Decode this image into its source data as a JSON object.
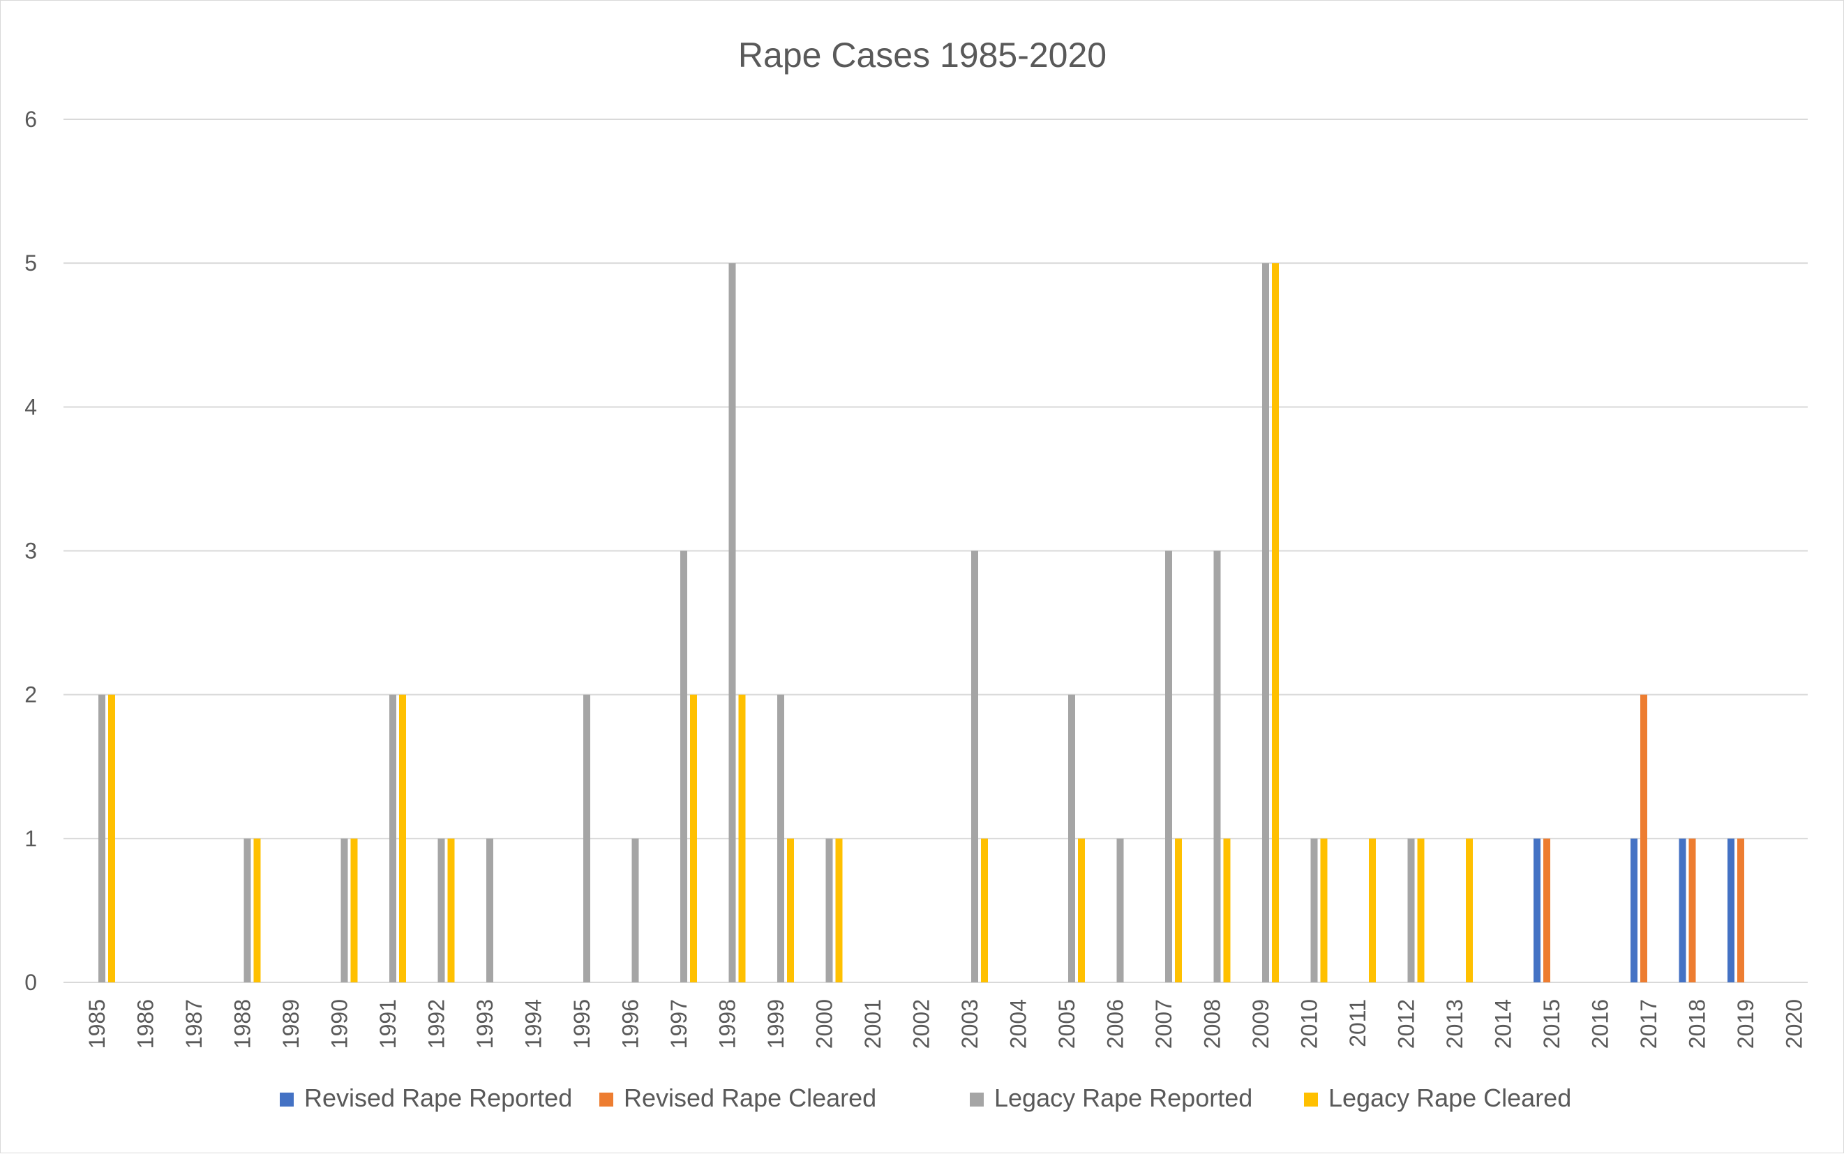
{
  "chart_data": {
    "type": "bar",
    "title": "Rape Cases 1985-2020",
    "xlabel": "",
    "ylabel": "",
    "ylim": [
      0,
      6
    ],
    "yticks": [
      "0",
      "1",
      "2",
      "3",
      "4",
      "5",
      "6"
    ],
    "grid": true,
    "legend_position": "bottom",
    "categories": [
      "1985",
      "1986",
      "1987",
      "1988",
      "1989",
      "1990",
      "1991",
      "1992",
      "1993",
      "1994",
      "1995",
      "1996",
      "1997",
      "1998",
      "1999",
      "2000",
      "2001",
      "2002",
      "2003",
      "2004",
      "2005",
      "2006",
      "2007",
      "2008",
      "2009",
      "2010",
      "2011",
      "2012",
      "2013",
      "2014",
      "2015",
      "2016",
      "2017",
      "2018",
      "2019",
      "2020"
    ],
    "series": [
      {
        "name": "Revised Rape Reported",
        "color": "#4472C4",
        "values": [
          0,
          0,
          0,
          0,
          0,
          0,
          0,
          0,
          0,
          0,
          0,
          0,
          0,
          0,
          0,
          0,
          0,
          0,
          0,
          0,
          0,
          0,
          0,
          0,
          0,
          0,
          0,
          0,
          0,
          0,
          1,
          0,
          1,
          1,
          1,
          0
        ]
      },
      {
        "name": "Revised Rape Cleared",
        "color": "#ED7D31",
        "values": [
          0,
          0,
          0,
          0,
          0,
          0,
          0,
          0,
          0,
          0,
          0,
          0,
          0,
          0,
          0,
          0,
          0,
          0,
          0,
          0,
          0,
          0,
          0,
          0,
          0,
          0,
          0,
          0,
          0,
          0,
          1,
          0,
          2,
          1,
          1,
          0
        ]
      },
      {
        "name": "Legacy Rape Reported",
        "color": "#A5A5A5",
        "values": [
          2,
          0,
          0,
          1,
          0,
          1,
          2,
          1,
          1,
          0,
          2,
          1,
          3,
          5,
          2,
          1,
          0,
          0,
          3,
          0,
          2,
          1,
          3,
          3,
          5,
          1,
          0,
          1,
          0,
          0,
          0,
          0,
          0,
          0,
          0,
          0
        ]
      },
      {
        "name": "Legacy Rape Cleared",
        "color": "#FFC000",
        "values": [
          2,
          0,
          0,
          1,
          0,
          1,
          2,
          1,
          0,
          0,
          0,
          0,
          2,
          2,
          1,
          1,
          0,
          0,
          1,
          0,
          1,
          0,
          1,
          1,
          5,
          1,
          1,
          1,
          1,
          0,
          0,
          0,
          0,
          0,
          0,
          0
        ]
      }
    ]
  }
}
